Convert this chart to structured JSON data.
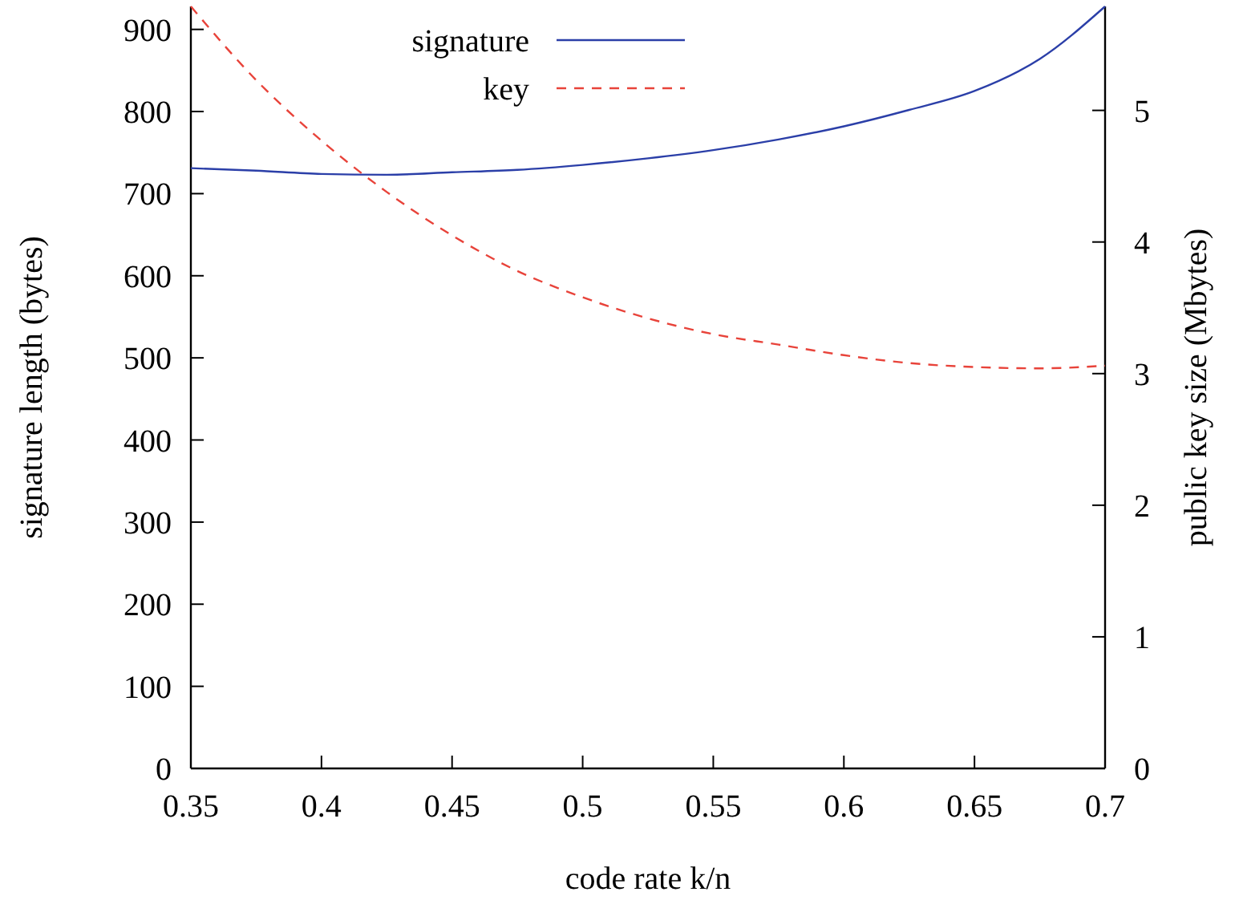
{
  "chart_data": {
    "type": "line",
    "xlabel": "code rate k/n",
    "ylabel": "signature length (bytes)",
    "y2label": "public key size (Mbytes)",
    "x": [
      0.35,
      0.375,
      0.4,
      0.425,
      0.45,
      0.475,
      0.5,
      0.525,
      0.55,
      0.575,
      0.6,
      0.625,
      0.65,
      0.675,
      0.7
    ],
    "series": [
      {
        "name": "signature",
        "color": "#2b3fa8",
        "line_style": "solid",
        "values": [
          731,
          728,
          724,
          723,
          726,
          729,
          735,
          743,
          753,
          766,
          782,
          802,
          825,
          864,
          928
        ]
      },
      {
        "name": "key",
        "color": "#e8433a",
        "line_style": "dashed",
        "axis": "y2",
        "values": [
          5.79,
          5.23,
          4.77,
          4.38,
          4.05,
          3.78,
          3.58,
          3.42,
          3.3,
          3.22,
          3.14,
          3.08,
          3.05,
          3.04,
          3.06
        ]
      }
    ],
    "xlim": [
      0.35,
      0.7
    ],
    "xticks": [
      0.35,
      0.4,
      0.45,
      0.5,
      0.55,
      0.6,
      0.65,
      0.7
    ],
    "ylim": [
      0,
      928
    ],
    "yticks": [
      0,
      100,
      200,
      300,
      400,
      500,
      600,
      700,
      800,
      900
    ],
    "y2lim": [
      0,
      5.79
    ],
    "y2ticks": [
      0,
      1,
      2,
      3,
      4,
      5
    ],
    "legend": "top",
    "grid": false,
    "marker": "none"
  }
}
